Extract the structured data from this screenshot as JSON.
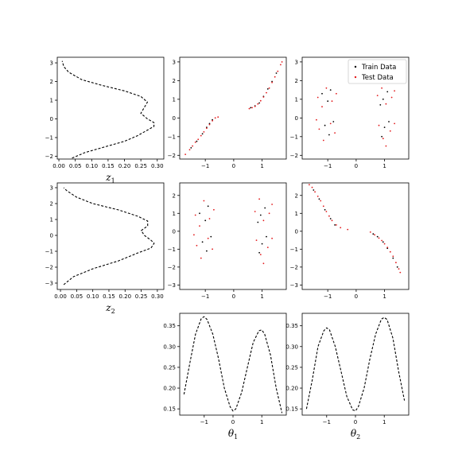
{
  "figure": {
    "legend": {
      "train_label": "Train Data",
      "test_label": "Test Data",
      "train_color": "#000000",
      "test_color": "#e31a1c",
      "placement": "top-right"
    },
    "marginal_color": "#000000"
  },
  "chart_data": [
    {
      "id": "z1-marginal",
      "type": "line",
      "style": "dashed",
      "orientation": "vertical",
      "xlabel": "z_1",
      "xlim": [
        -0.005,
        0.32
      ],
      "ylim": [
        -2.15,
        3.3
      ],
      "xticks": [
        0.0,
        0.05,
        0.1,
        0.15,
        0.2,
        0.25,
        0.3
      ],
      "xtick_labels": [
        "0.00",
        "0.05",
        "0.10",
        "0.15",
        "0.20",
        "0.25",
        "0.30"
      ],
      "yticks": [
        -2,
        -1,
        0,
        1,
        2,
        3
      ],
      "ytick_labels": [
        "−2",
        "−1",
        "0",
        "1",
        "2",
        "3"
      ],
      "x": [
        0.04,
        0.08,
        0.14,
        0.2,
        0.24,
        0.27,
        0.29,
        0.29,
        0.27,
        0.25,
        0.26,
        0.27,
        0.25,
        0.2,
        0.13,
        0.07,
        0.03,
        0.015,
        0.01
      ],
      "y": [
        -2.1,
        -1.8,
        -1.5,
        -1.2,
        -0.9,
        -0.6,
        -0.4,
        -0.2,
        0.0,
        0.3,
        0.6,
        0.9,
        1.2,
        1.5,
        1.8,
        2.1,
        2.5,
        2.8,
        3.1
      ]
    },
    {
      "id": "z2-marginal",
      "type": "line",
      "style": "dashed",
      "orientation": "vertical",
      "xlabel": "z_2",
      "xlim": [
        -0.01,
        0.32
      ],
      "ylim": [
        -3.4,
        3.3
      ],
      "xticks": [
        0.0,
        0.05,
        0.1,
        0.15,
        0.2,
        0.25,
        0.3
      ],
      "xtick_labels": [
        "0.00",
        "0.05",
        "0.10",
        "0.15",
        "0.20",
        "0.25",
        "0.30"
      ],
      "yticks": [
        -3,
        -2,
        -1,
        0,
        1,
        2,
        3
      ],
      "ytick_labels": [
        "−3",
        "−2",
        "−1",
        "0",
        "1",
        "2",
        "3"
      ],
      "x": [
        0.01,
        0.04,
        0.1,
        0.18,
        0.24,
        0.28,
        0.29,
        0.28,
        0.26,
        0.25,
        0.27,
        0.27,
        0.24,
        0.18,
        0.1,
        0.05,
        0.02,
        0.01
      ],
      "y": [
        -3.1,
        -2.6,
        -2.1,
        -1.6,
        -1.1,
        -0.8,
        -0.5,
        -0.3,
        0.0,
        0.3,
        0.6,
        0.9,
        1.2,
        1.6,
        2.0,
        2.4,
        2.8,
        3.0
      ]
    },
    {
      "id": "scatter-z1-theta1",
      "type": "scatter",
      "xlim": [
        -1.9,
        1.85
      ],
      "ylim": [
        -2.2,
        3.25
      ],
      "xticks": [
        -1,
        0,
        1
      ],
      "xtick_labels": [
        "−1",
        "0",
        "1"
      ],
      "yticks": [
        -2,
        -1,
        0,
        1,
        2,
        3
      ],
      "ytick_labels": [
        "−2",
        "−1",
        "0",
        "1",
        "2",
        "3"
      ],
      "series": [
        {
          "name": "Train Data",
          "points": [
            [
              -1.5,
              -1.6
            ],
            [
              -1.3,
              -1.25
            ],
            [
              -1.1,
              -0.85
            ],
            [
              -0.95,
              -0.5
            ],
            [
              -0.85,
              -0.3
            ],
            [
              -0.75,
              -0.1
            ],
            [
              0.6,
              0.55
            ],
            [
              0.75,
              0.65
            ],
            [
              0.9,
              0.8
            ],
            [
              1.05,
              1.15
            ],
            [
              1.2,
              1.55
            ],
            [
              1.35,
              1.95
            ],
            [
              1.5,
              2.4
            ]
          ]
        },
        {
          "name": "Test Data",
          "points": [
            [
              -1.7,
              -1.95
            ],
            [
              -1.55,
              -1.7
            ],
            [
              -1.45,
              -1.5
            ],
            [
              -1.35,
              -1.3
            ],
            [
              -1.25,
              -1.15
            ],
            [
              -1.15,
              -0.95
            ],
            [
              -1.05,
              -0.75
            ],
            [
              -0.95,
              -0.55
            ],
            [
              -0.85,
              -0.35
            ],
            [
              -0.75,
              -0.15
            ],
            [
              -0.65,
              0.0
            ],
            [
              -0.55,
              0.05
            ],
            [
              0.55,
              0.5
            ],
            [
              0.65,
              0.55
            ],
            [
              0.75,
              0.62
            ],
            [
              0.85,
              0.75
            ],
            [
              0.95,
              0.92
            ],
            [
              1.05,
              1.12
            ],
            [
              1.15,
              1.35
            ],
            [
              1.25,
              1.6
            ],
            [
              1.35,
              1.9
            ],
            [
              1.45,
              2.2
            ],
            [
              1.55,
              2.5
            ],
            [
              1.65,
              2.85
            ],
            [
              1.7,
              3.0
            ]
          ]
        }
      ]
    },
    {
      "id": "scatter-z1-theta2",
      "type": "scatter",
      "xlim": [
        -1.9,
        1.85
      ],
      "ylim": [
        -2.2,
        3.25
      ],
      "xticks": [
        -1,
        0,
        1
      ],
      "xtick_labels": [
        "−1",
        "0",
        "1"
      ],
      "yticks": [
        -2,
        -1,
        0,
        1,
        2,
        3
      ],
      "ytick_labels": [
        "−2",
        "−1",
        "0",
        "1",
        "2",
        "3"
      ],
      "series": [
        {
          "name": "Train Data",
          "points": [
            [
              -1.2,
              1.3
            ],
            [
              -1.0,
              0.9
            ],
            [
              -0.9,
              1.5
            ],
            [
              -1.1,
              -0.4
            ],
            [
              -0.95,
              -0.9
            ],
            [
              -0.8,
              -0.2
            ],
            [
              0.95,
              1.0
            ],
            [
              1.1,
              1.4
            ],
            [
              0.85,
              0.7
            ],
            [
              1.0,
              -0.5
            ],
            [
              1.15,
              -0.2
            ],
            [
              0.9,
              -1.0
            ]
          ]
        },
        {
          "name": "Test Data",
          "points": [
            [
              -1.35,
              1.1
            ],
            [
              -1.2,
              0.6
            ],
            [
              -1.05,
              1.6
            ],
            [
              -0.85,
              0.9
            ],
            [
              -0.7,
              1.3
            ],
            [
              -1.3,
              -0.6
            ],
            [
              -1.15,
              -1.2
            ],
            [
              -0.9,
              -0.3
            ],
            [
              -0.75,
              -0.8
            ],
            [
              -1.4,
              -0.1
            ],
            [
              0.75,
              1.2
            ],
            [
              0.9,
              1.6
            ],
            [
              1.05,
              0.75
            ],
            [
              1.25,
              1.1
            ],
            [
              1.35,
              1.45
            ],
            [
              0.8,
              -0.4
            ],
            [
              0.95,
              -1.1
            ],
            [
              1.2,
              -0.7
            ],
            [
              1.35,
              -0.3
            ],
            [
              1.05,
              -1.5
            ]
          ]
        }
      ]
    },
    {
      "id": "scatter-z2-theta1",
      "type": "scatter",
      "xlim": [
        -1.9,
        1.85
      ],
      "ylim": [
        -3.25,
        2.7
      ],
      "xticks": [
        -1,
        0,
        1
      ],
      "xtick_labels": [
        "−1",
        "0",
        "1"
      ],
      "yticks": [
        -3,
        -2,
        -1,
        0,
        1,
        2
      ],
      "ytick_labels": [
        "−3",
        "−2",
        "−1",
        "0",
        "1",
        "2"
      ],
      "series": [
        {
          "name": "Train Data",
          "points": [
            [
              -1.2,
              1.0
            ],
            [
              -1.0,
              0.6
            ],
            [
              -0.9,
              1.4
            ],
            [
              -1.1,
              -0.6
            ],
            [
              -0.95,
              -1.1
            ],
            [
              -0.8,
              -0.3
            ],
            [
              0.95,
              0.9
            ],
            [
              1.1,
              1.3
            ],
            [
              0.85,
              0.5
            ],
            [
              1.0,
              -0.7
            ],
            [
              1.15,
              -0.3
            ],
            [
              0.9,
              -1.2
            ]
          ]
        },
        {
          "name": "Test Data",
          "points": [
            [
              -1.35,
              0.9
            ],
            [
              -1.2,
              0.3
            ],
            [
              -1.05,
              1.7
            ],
            [
              -0.85,
              0.7
            ],
            [
              -0.7,
              1.2
            ],
            [
              -1.3,
              -0.8
            ],
            [
              -1.15,
              -1.5
            ],
            [
              -0.9,
              -0.4
            ],
            [
              -0.75,
              -1.0
            ],
            [
              -1.4,
              -0.2
            ],
            [
              0.75,
              1.1
            ],
            [
              0.9,
              1.8
            ],
            [
              1.05,
              0.6
            ],
            [
              1.25,
              1.0
            ],
            [
              1.35,
              1.5
            ],
            [
              0.8,
              -0.5
            ],
            [
              0.95,
              -1.3
            ],
            [
              1.2,
              -0.9
            ],
            [
              1.35,
              -0.4
            ],
            [
              1.05,
              -1.8
            ]
          ]
        }
      ]
    },
    {
      "id": "scatter-z2-theta2",
      "type": "scatter",
      "xlim": [
        -1.9,
        1.85
      ],
      "ylim": [
        -3.25,
        2.7
      ],
      "xticks": [
        -1,
        0,
        1
      ],
      "xtick_labels": [
        "−1",
        "0",
        "1"
      ],
      "yticks": [
        -3,
        -2,
        -1,
        0,
        1,
        2
      ],
      "ytick_labels": [
        "−3",
        "−2",
        "−1",
        "0",
        "1",
        "2"
      ],
      "series": [
        {
          "name": "Train Data",
          "points": [
            [
              -1.5,
              2.3
            ],
            [
              -1.3,
              1.8
            ],
            [
              -1.1,
              1.2
            ],
            [
              -0.9,
              0.7
            ],
            [
              -0.75,
              0.35
            ],
            [
              0.6,
              -0.15
            ],
            [
              0.75,
              -0.3
            ],
            [
              0.95,
              -0.6
            ],
            [
              1.1,
              -0.95
            ],
            [
              1.3,
              -1.5
            ],
            [
              1.45,
              -2.0
            ]
          ]
        },
        {
          "name": "Test Data",
          "points": [
            [
              -1.65,
              2.6
            ],
            [
              -1.55,
              2.45
            ],
            [
              -1.45,
              2.2
            ],
            [
              -1.35,
              1.95
            ],
            [
              -1.25,
              1.7
            ],
            [
              -1.15,
              1.4
            ],
            [
              -1.05,
              1.1
            ],
            [
              -0.95,
              0.85
            ],
            [
              -0.85,
              0.6
            ],
            [
              -0.7,
              0.35
            ],
            [
              -0.55,
              0.2
            ],
            [
              -0.3,
              0.1
            ],
            [
              0.5,
              -0.05
            ],
            [
              0.65,
              -0.2
            ],
            [
              0.8,
              -0.38
            ],
            [
              0.9,
              -0.52
            ],
            [
              1.0,
              -0.7
            ],
            [
              1.1,
              -0.9
            ],
            [
              1.2,
              -1.15
            ],
            [
              1.3,
              -1.4
            ],
            [
              1.4,
              -1.75
            ],
            [
              1.5,
              -2.1
            ],
            [
              1.55,
              -2.3
            ]
          ]
        }
      ]
    },
    {
      "id": "theta1-marginal",
      "type": "line",
      "style": "dashed",
      "xlabel": "θ_1",
      "xlim": [
        -1.85,
        1.85
      ],
      "ylim": [
        0.135,
        0.38
      ],
      "xticks": [
        -1,
        0,
        1
      ],
      "xtick_labels": [
        "−1",
        "0",
        "1"
      ],
      "yticks": [
        0.15,
        0.2,
        0.25,
        0.3,
        0.35
      ],
      "ytick_labels": [
        "0.15",
        "0.20",
        "0.25",
        "0.30",
        "0.35"
      ],
      "x": [
        -1.7,
        -1.5,
        -1.3,
        -1.1,
        -1.0,
        -0.9,
        -0.7,
        -0.5,
        -0.3,
        -0.1,
        0.0,
        0.1,
        0.3,
        0.5,
        0.7,
        0.9,
        1.0,
        1.1,
        1.3,
        1.5,
        1.7
      ],
      "y": [
        0.185,
        0.26,
        0.33,
        0.368,
        0.372,
        0.365,
        0.33,
        0.27,
        0.2,
        0.155,
        0.145,
        0.15,
        0.19,
        0.25,
        0.31,
        0.338,
        0.34,
        0.33,
        0.28,
        0.2,
        0.14
      ]
    },
    {
      "id": "theta2-marginal",
      "type": "line",
      "style": "dashed",
      "xlabel": "θ_2",
      "xlim": [
        -1.85,
        1.85
      ],
      "ylim": [
        0.135,
        0.38
      ],
      "xticks": [
        -1,
        0,
        1
      ],
      "xtick_labels": [
        "−1",
        "0",
        "1"
      ],
      "yticks": [
        0.15,
        0.2,
        0.25,
        0.3,
        0.35
      ],
      "ytick_labels": [
        "0.15",
        "0.20",
        "0.25",
        "0.30",
        "0.35"
      ],
      "x": [
        -1.7,
        -1.5,
        -1.3,
        -1.1,
        -1.0,
        -0.9,
        -0.7,
        -0.5,
        -0.3,
        -0.1,
        0.0,
        0.1,
        0.3,
        0.5,
        0.7,
        0.9,
        1.0,
        1.1,
        1.3,
        1.5,
        1.7
      ],
      "y": [
        0.15,
        0.22,
        0.3,
        0.338,
        0.345,
        0.34,
        0.3,
        0.24,
        0.18,
        0.148,
        0.145,
        0.155,
        0.2,
        0.27,
        0.33,
        0.366,
        0.37,
        0.365,
        0.32,
        0.24,
        0.17
      ]
    }
  ]
}
